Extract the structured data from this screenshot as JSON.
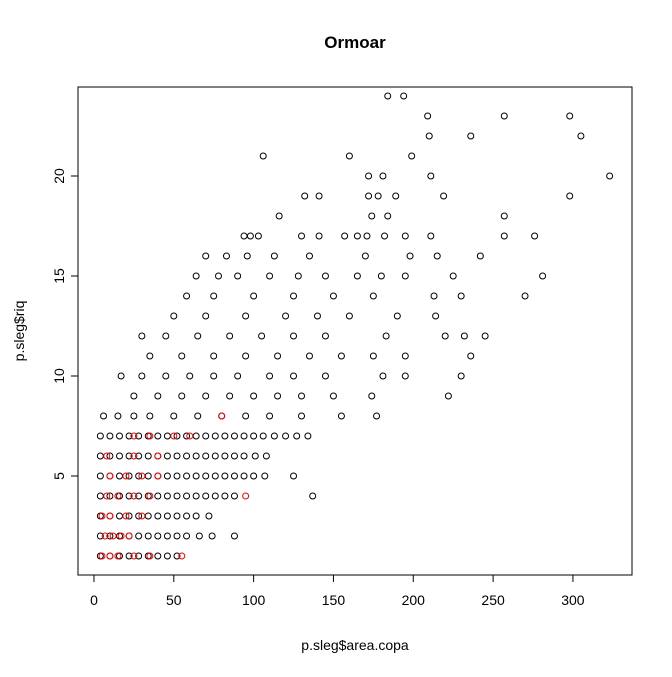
{
  "chart_data": {
    "type": "scatter",
    "title": "Ormoar",
    "x_label": "p.sleg$area.copa",
    "y_label": "p.sleg$riq",
    "xlim": [
      -10,
      337
    ],
    "ylim": [
      0.05,
      24.45
    ],
    "xticks": [
      0,
      50,
      100,
      150,
      200,
      250,
      300
    ],
    "yticks": [
      5,
      10,
      15,
      20
    ],
    "series": [
      {
        "color": "#000000",
        "x": [
          184,
          194,
          209,
          257,
          298,
          210,
          236,
          305,
          106,
          160,
          199,
          172,
          181,
          211,
          323,
          132,
          141,
          172,
          178,
          189,
          219,
          298,
          116,
          174,
          184,
          257,
          94,
          98,
          103,
          130,
          141,
          157,
          165,
          171,
          182,
          195,
          211,
          257,
          276,
          70,
          83,
          96,
          113,
          135,
          170,
          198,
          215,
          242,
          64,
          78,
          90,
          110,
          128,
          145,
          165,
          180,
          195,
          225,
          281,
          58,
          75,
          100,
          125,
          150,
          175,
          213,
          230,
          270,
          50,
          70,
          95,
          120,
          140,
          160,
          190,
          214,
          30,
          45,
          65,
          85,
          105,
          125,
          145,
          183,
          220,
          232,
          245,
          35,
          55,
          75,
          95,
          115,
          135,
          155,
          175,
          195,
          236,
          17,
          30,
          45,
          60,
          75,
          90,
          110,
          125,
          145,
          181,
          195,
          230,
          25,
          40,
          55,
          70,
          85,
          100,
          115,
          130,
          150,
          174,
          222,
          6,
          15,
          25,
          35,
          50,
          65,
          80,
          95,
          110,
          130,
          155,
          177,
          4,
          10,
          16,
          22,
          28,
          34,
          40,
          46,
          52,
          58,
          64,
          70,
          76,
          82,
          88,
          94,
          100,
          106,
          113,
          120,
          127,
          134,
          4,
          10,
          16,
          22,
          28,
          34,
          40,
          46,
          52,
          58,
          64,
          70,
          76,
          82,
          88,
          94,
          101,
          108,
          4,
          10,
          16,
          22,
          28,
          34,
          40,
          46,
          52,
          58,
          64,
          70,
          76,
          82,
          88,
          94,
          100,
          107,
          125,
          4,
          10,
          16,
          22,
          28,
          34,
          40,
          46,
          52,
          58,
          64,
          70,
          76,
          82,
          88,
          137,
          4,
          10,
          16,
          22,
          28,
          34,
          40,
          46,
          52,
          58,
          64,
          72,
          4,
          10,
          16,
          22,
          28,
          34,
          40,
          46,
          52,
          58,
          66,
          74,
          88,
          4,
          10,
          16,
          22,
          28,
          34,
          40,
          46,
          52
        ],
        "y": [
          24,
          24,
          23,
          23,
          23,
          22,
          22,
          22,
          21,
          21,
          21,
          20,
          20,
          20,
          20,
          19,
          19,
          19,
          19,
          19,
          19,
          19,
          18,
          18,
          18,
          18,
          17,
          17,
          17,
          17,
          17,
          17,
          17,
          17,
          17,
          17,
          17,
          17,
          17,
          16,
          16,
          16,
          16,
          16,
          16,
          16,
          16,
          16,
          15,
          15,
          15,
          15,
          15,
          15,
          15,
          15,
          15,
          15,
          15,
          14,
          14,
          14,
          14,
          14,
          14,
          14,
          14,
          14,
          13,
          13,
          13,
          13,
          13,
          13,
          13,
          13,
          12,
          12,
          12,
          12,
          12,
          12,
          12,
          12,
          12,
          12,
          12,
          11,
          11,
          11,
          11,
          11,
          11,
          11,
          11,
          11,
          11,
          10,
          10,
          10,
          10,
          10,
          10,
          10,
          10,
          10,
          10,
          10,
          10,
          9,
          9,
          9,
          9,
          9,
          9,
          9,
          9,
          9,
          9,
          9,
          8,
          8,
          8,
          8,
          8,
          8,
          8,
          8,
          8,
          8,
          8,
          8,
          7,
          7,
          7,
          7,
          7,
          7,
          7,
          7,
          7,
          7,
          7,
          7,
          7,
          7,
          7,
          7,
          7,
          7,
          7,
          7,
          7,
          7,
          6,
          6,
          6,
          6,
          6,
          6,
          6,
          6,
          6,
          6,
          6,
          6,
          6,
          6,
          6,
          6,
          6,
          6,
          5,
          5,
          5,
          5,
          5,
          5,
          5,
          5,
          5,
          5,
          5,
          5,
          5,
          5,
          5,
          5,
          5,
          5,
          5,
          4,
          4,
          4,
          4,
          4,
          4,
          4,
          4,
          4,
          4,
          4,
          4,
          4,
          4,
          4,
          4,
          3,
          3,
          3,
          3,
          3,
          3,
          3,
          3,
          3,
          3,
          3,
          3,
          2,
          2,
          2,
          2,
          2,
          2,
          2,
          2,
          2,
          2,
          2,
          2,
          2,
          1,
          1,
          1,
          1,
          1,
          1,
          1,
          1,
          1
        ]
      },
      {
        "color": "#ff0000",
        "x": [
          5,
          10,
          15,
          25,
          35,
          55,
          7,
          12,
          17,
          22,
          5,
          10,
          20,
          30,
          8,
          15,
          25,
          35,
          95,
          10,
          20,
          30,
          40,
          8,
          25,
          40,
          25,
          35,
          50,
          60,
          80
        ],
        "y": [
          1,
          1,
          1,
          1,
          1,
          1,
          2,
          2,
          2,
          2,
          3,
          3,
          3,
          3,
          4,
          4,
          4,
          4,
          4,
          5,
          5,
          5,
          5,
          6,
          6,
          6,
          7,
          7,
          7,
          7,
          8
        ]
      }
    ]
  }
}
